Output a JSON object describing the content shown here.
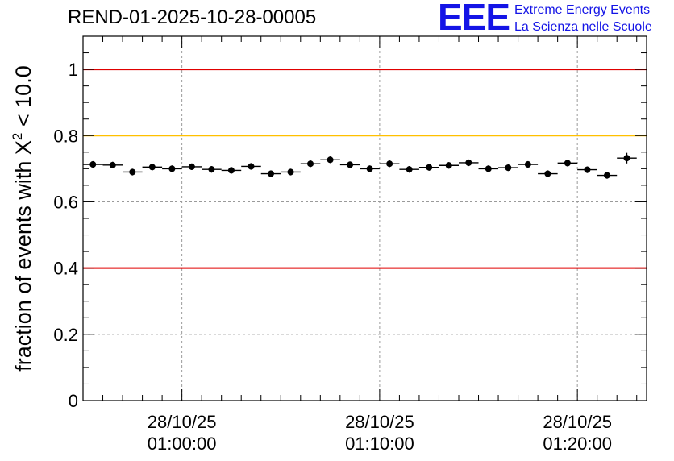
{
  "header": {
    "run_id": "REND-01-2025-10-28-00005",
    "logo_mark": "EEE",
    "logo_line1": "Extreme Energy Events",
    "logo_line2": "La Scienza nelle Scuole"
  },
  "colors": {
    "brand": "#1414e6",
    "red_line": "#e00000",
    "orange_line": "#ffc000",
    "grid": "#9a9a9a"
  },
  "chart_data": {
    "type": "scatter",
    "title": "REND-01-2025-10-28-00005",
    "xlabel": "",
    "ylabel_prefix": "fraction of events with ",
    "ylabel_symbol": "X",
    "ylabel_exponent": "2",
    "ylabel_suffix": " < 10.0",
    "xlim_min": [
      -5,
      23.5
    ],
    "ylim": [
      0,
      1.1
    ],
    "yticks": [
      0,
      0.2,
      0.4,
      0.6,
      0.8,
      1
    ],
    "ytick_labels": [
      "0",
      "0.2",
      "0.4",
      "0.6",
      "0.8",
      "1"
    ],
    "xticks": [
      {
        "min": 0,
        "date": "28/10/25",
        "time": "01:00:00"
      },
      {
        "min": 10,
        "date": "28/10/25",
        "time": "01:10:00"
      },
      {
        "min": 20,
        "date": "28/10/25",
        "time": "01:20:00"
      }
    ],
    "x_minor_step_min": 1,
    "grid": true,
    "bin_width_min": 1,
    "x_start_min": -4.5,
    "values": [
      0.713,
      0.711,
      0.69,
      0.705,
      0.7,
      0.706,
      0.698,
      0.695,
      0.707,
      0.685,
      0.69,
      0.715,
      0.727,
      0.712,
      0.7,
      0.715,
      0.698,
      0.704,
      0.71,
      0.718,
      0.7,
      0.703,
      0.713,
      0.685,
      0.717,
      0.697,
      0.68,
      0.732
    ],
    "errors": [
      0.01,
      0.01,
      0.01,
      0.01,
      0.01,
      0.01,
      0.01,
      0.01,
      0.01,
      0.01,
      0.01,
      0.01,
      0.01,
      0.01,
      0.01,
      0.01,
      0.01,
      0.01,
      0.01,
      0.01,
      0.01,
      0.01,
      0.01,
      0.01,
      0.01,
      0.01,
      0.01,
      0.016
    ],
    "reference_lines": [
      {
        "y": 1.0,
        "color": "#e00000"
      },
      {
        "y": 0.8,
        "color": "#ffc000"
      },
      {
        "y": 0.4,
        "color": "#e00000"
      }
    ]
  }
}
